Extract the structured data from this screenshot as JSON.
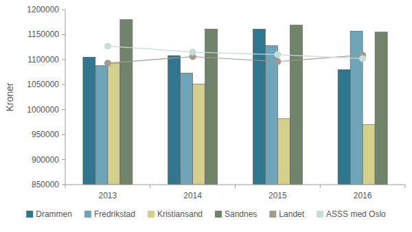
{
  "chart_data": {
    "type": "bar",
    "y_label": "Kroner",
    "categories": [
      "2013",
      "2014",
      "2015",
      "2016"
    ],
    "ylim": [
      850000,
      1200000
    ],
    "yticks": [
      850000,
      900000,
      950000,
      1000000,
      1050000,
      1100000,
      1150000,
      1200000
    ],
    "grid": false,
    "legend": "bottom",
    "series": [
      {
        "name": "Drammen",
        "color": "#31768f",
        "values": [
          1105000,
          1108000,
          1161000,
          1080000
        ]
      },
      {
        "name": "Fredrikstad",
        "color": "#6fa5b8",
        "values": [
          1088000,
          1073000,
          1128000,
          1157000
        ]
      },
      {
        "name": "Kristiansand",
        "color": "#d4cf8a",
        "values": [
          1093000,
          1051000,
          982000,
          970000
        ]
      },
      {
        "name": "Sandnes",
        "color": "#6f8468",
        "values": [
          1180000,
          1161000,
          1169000,
          1155000
        ]
      },
      {
        "name": "Landet",
        "color": "#a09a90",
        "type": "line",
        "marker": "circle",
        "values": [
          1093000,
          1106000,
          1096000,
          1109000
        ]
      },
      {
        "name": "ASSS med Oslo",
        "color": "#c5dcd8",
        "type": "line",
        "marker": "circle",
        "values": [
          1127000,
          1115000,
          1110000,
          1102000
        ]
      }
    ]
  }
}
